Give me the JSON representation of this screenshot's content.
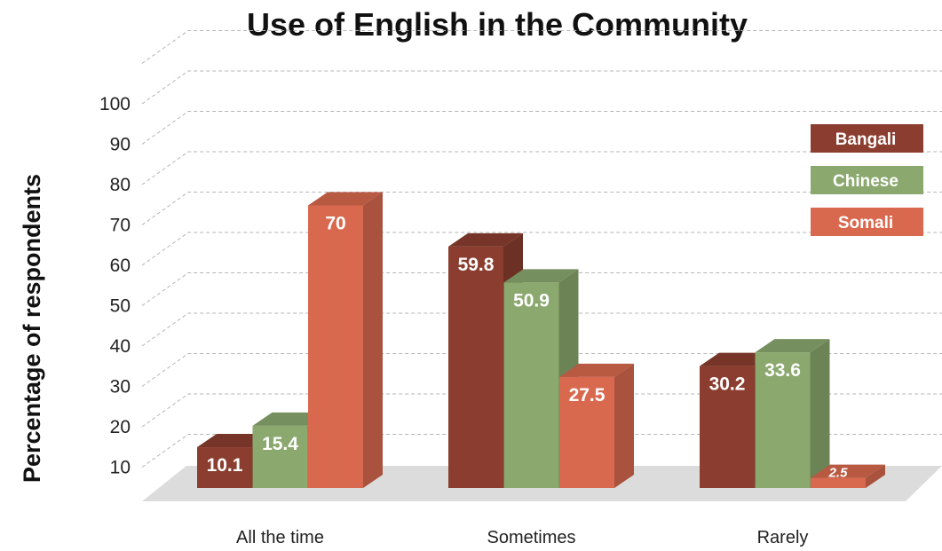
{
  "chart_data": {
    "type": "bar",
    "title": "Use of English in the Community",
    "xlabel": "",
    "ylabel": "Percentage of respondents",
    "categories": [
      "All the time",
      "Sometimes",
      "Rarely"
    ],
    "series": [
      {
        "name": "Bangali",
        "values": [
          10.1,
          59.8,
          30.2
        ],
        "color": "#8B3E2F"
      },
      {
        "name": "Chinese",
        "values": [
          15.4,
          50.9,
          33.6
        ],
        "color": "#8BA86E"
      },
      {
        "name": "Somali",
        "values": [
          70,
          27.5,
          2.5
        ],
        "color": "#D9694E"
      }
    ],
    "yticks": [
      10,
      20,
      30,
      40,
      50,
      60,
      70,
      80,
      90,
      100
    ],
    "ylim": [
      0,
      100
    ],
    "grid": true,
    "legend_position": "top-right",
    "style": "3d-columns"
  }
}
